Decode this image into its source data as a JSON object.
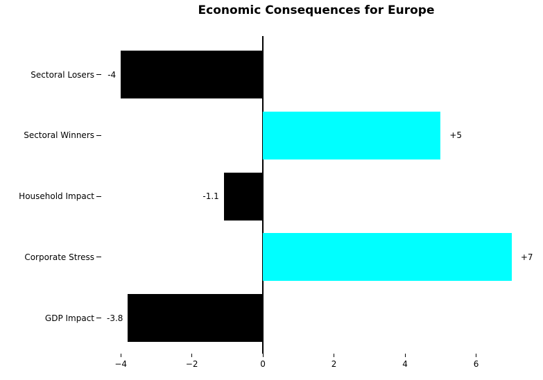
{
  "chart_data": {
    "type": "bar",
    "orientation": "horizontal",
    "title": "Economic Consequences for Europe",
    "categories": [
      "Sectoral Losers",
      "Sectoral Winners",
      "Household Impact",
      "Corporate Stress",
      "GDP Impact"
    ],
    "values": [
      -4,
      5,
      -1.1,
      7,
      -3.8
    ],
    "value_labels": [
      "-4",
      "+5",
      "-1.1",
      "+7",
      "-3.8"
    ],
    "x_ticks": [
      -4,
      -2,
      0,
      2,
      4,
      6
    ],
    "x_tick_labels": [
      "−4",
      "−2",
      "0",
      "2",
      "4",
      "6"
    ],
    "xlim": [
      -4.55,
      7.55
    ],
    "xlabel": "",
    "ylabel": "",
    "grid": false,
    "legend": null,
    "colors": {
      "negative_bar": "#000000",
      "positive_bar": "#00ffff",
      "axis": "#000000",
      "text": "#000000",
      "background": "#ffffff"
    }
  }
}
